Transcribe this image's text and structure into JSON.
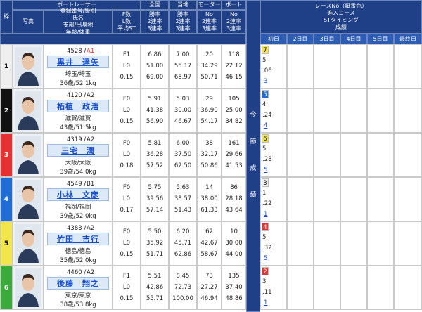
{
  "header": {
    "frame": "枠",
    "photo": "写真",
    "racer": "ボートレーサー",
    "racer_info": [
      "登録番号/級別",
      "氏名",
      "支部/出身地",
      "年齢/体重"
    ],
    "fl": [
      "F数",
      "L数",
      "平均ST"
    ],
    "national": "全国",
    "local": "当地",
    "motor": "モーター",
    "boat": "ボート",
    "rate_labels": [
      "勝率",
      "2連率",
      "3連率"
    ],
    "no_labels": [
      "No",
      "2連率",
      "3連率"
    ],
    "session": [
      "今",
      "節",
      "成",
      "績"
    ],
    "results_labels": [
      "レースNo（艇番色）",
      "進入コース",
      "STタイミング",
      "成績"
    ],
    "days": [
      "初日",
      "2日目",
      "3日目",
      "4日目",
      "5日目",
      "最終日"
    ]
  },
  "settings": {
    "frame_colors": [
      [
        "#efefef",
        "#111"
      ],
      [
        "#111",
        "#fff"
      ],
      [
        "#e5312f",
        "#fff"
      ],
      [
        "#1f6ed6",
        "#fff"
      ],
      [
        "#f3e64a",
        "#111"
      ],
      [
        "#3aaa3a",
        "#fff"
      ]
    ],
    "class_colors": {
      "A1": "#e02020",
      "A2": "#222",
      "B1": "#222"
    }
  },
  "racers": [
    {
      "frame": "1",
      "reg": "4528 /",
      "class": "A1",
      "name": "黒井　達矢",
      "branch": "埼玉/埼玉",
      "age_weight": "36歳/52.1kg",
      "fl": [
        "F1",
        "L0",
        "0.15"
      ],
      "national": [
        "6.86",
        "51.00",
        "69.00"
      ],
      "local": [
        "7.00",
        "55.17",
        "68.97"
      ],
      "motor": [
        "20",
        "34.29",
        "50.71"
      ],
      "boat": [
        "118",
        "22.12",
        "46.15"
      ],
      "result": {
        "race": "7",
        "boat_frame": 5,
        "course": "5",
        "st": ".06",
        "rank": "3"
      }
    },
    {
      "frame": "2",
      "reg": "4120 /",
      "class": "A2",
      "name": "柘植　政浩",
      "branch": "滋賀/滋賀",
      "age_weight": "43歳/51.5kg",
      "fl": [
        "F0",
        "L0",
        "0.15"
      ],
      "national": [
        "5.91",
        "41.38",
        "56.90"
      ],
      "local": [
        "5.03",
        "30.00",
        "46.67"
      ],
      "motor": [
        "29",
        "36.90",
        "54.17"
      ],
      "boat": [
        "105",
        "25.00",
        "34.82"
      ],
      "result": {
        "race": "5",
        "boat_frame": 4,
        "course": "4",
        "st": ".24",
        "rank": "4"
      }
    },
    {
      "frame": "3",
      "reg": "4319 /",
      "class": "A2",
      "name": "三宅　潤",
      "branch": "大阪/大阪",
      "age_weight": "39歳/54.0kg",
      "fl": [
        "F0",
        "L0",
        "0.18"
      ],
      "national": [
        "5.81",
        "36.28",
        "57.52"
      ],
      "local": [
        "6.00",
        "37.50",
        "62.50"
      ],
      "motor": [
        "38",
        "32.17",
        "50.86"
      ],
      "boat": [
        "161",
        "29.66",
        "41.53"
      ],
      "result": {
        "race": "6",
        "boat_frame": 5,
        "course": "5",
        "st": ".28",
        "rank": "5"
      }
    },
    {
      "frame": "4",
      "reg": "4549 /",
      "class": "B1",
      "name": "小林　文彦",
      "branch": "福岡/福岡",
      "age_weight": "39歳/52.0kg",
      "fl": [
        "F0",
        "L0",
        "0.17"
      ],
      "national": [
        "5.75",
        "39.56",
        "57.14"
      ],
      "local": [
        "5.63",
        "38.57",
        "51.43"
      ],
      "motor": [
        "14",
        "38.00",
        "61.33"
      ],
      "boat": [
        "86",
        "28.18",
        "43.64"
      ],
      "result": {
        "race": "3",
        "boat_frame": 1,
        "course": "1",
        "st": ".22",
        "rank": "1"
      }
    },
    {
      "frame": "5",
      "reg": "4383 /",
      "class": "A2",
      "name": "竹田　吉行",
      "branch": "徳島/徳島",
      "age_weight": "35歳/52.0kg",
      "fl": [
        "F0",
        "L0",
        "0.15"
      ],
      "national": [
        "5.50",
        "35.92",
        "51.71"
      ],
      "local": [
        "6.20",
        "45.71",
        "62.86"
      ],
      "motor": [
        "62",
        "42.67",
        "58.67"
      ],
      "boat": [
        "10",
        "30.00",
        "44.00"
      ],
      "result": {
        "race": "4",
        "boat_frame": 3,
        "course": "5",
        "st": ".32",
        "rank": "5"
      }
    },
    {
      "frame": "6",
      "reg": "4460 /",
      "class": "A2",
      "name": "後藤　翔之",
      "branch": "東京/東京",
      "age_weight": "38歳/53.8kg",
      "fl": [
        "F1",
        "L0",
        "0.15"
      ],
      "national": [
        "5.51",
        "42.86",
        "55.71"
      ],
      "local": [
        "8.45",
        "72.73",
        "100.00"
      ],
      "motor": [
        "73",
        "27.27",
        "46.94"
      ],
      "boat": [
        "135",
        "37.40",
        "48.86"
      ],
      "result": {
        "race": "2",
        "boat_frame": 3,
        "course": "3",
        "st": ".11",
        "rank": "1"
      }
    }
  ]
}
